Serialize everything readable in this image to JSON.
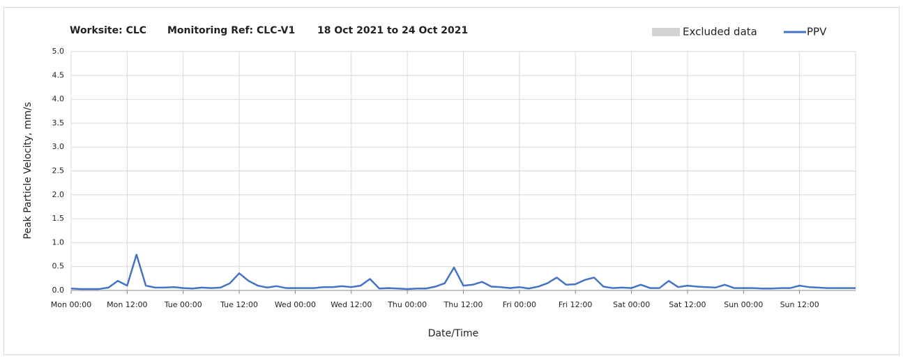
{
  "chart_data": {
    "type": "line",
    "title": "Worksite: CLC",
    "monitoring_ref": "Monitoring Ref: CLC-V1",
    "date_range": "18 Oct 2021 to 24 Oct 2021",
    "x_label": "Date/Time",
    "y_label": "Peak Particle Velocity, mm/s",
    "excluded_data": {
      "name": "Excluded data",
      "color": "#d3d3d3"
    },
    "x": [
      0,
      2,
      4,
      6,
      8,
      10,
      12,
      14,
      16,
      18,
      20,
      22,
      24,
      26,
      28,
      30,
      32,
      34,
      36,
      38,
      40,
      42,
      44,
      46,
      48,
      50,
      52,
      54,
      56,
      58,
      60,
      62,
      64,
      66,
      68,
      70,
      72,
      74,
      76,
      78,
      80,
      82,
      84,
      86,
      88,
      90,
      92,
      94,
      96,
      98,
      100,
      102,
      104,
      106,
      108,
      110,
      112,
      114,
      116,
      118,
      120,
      122,
      124,
      126,
      128,
      130,
      132,
      134,
      136,
      138,
      140,
      142,
      144,
      146,
      148,
      150,
      152,
      154,
      156,
      158,
      160,
      162,
      164,
      166,
      168
    ],
    "series": [
      {
        "name": "PPV",
        "color": "#4472c4",
        "values": [
          0.04,
          0.03,
          0.03,
          0.03,
          0.06,
          0.2,
          0.1,
          0.75,
          0.1,
          0.06,
          0.06,
          0.07,
          0.05,
          0.04,
          0.06,
          0.05,
          0.06,
          0.15,
          0.36,
          0.2,
          0.1,
          0.06,
          0.09,
          0.05,
          0.05,
          0.05,
          0.05,
          0.07,
          0.07,
          0.09,
          0.07,
          0.1,
          0.24,
          0.04,
          0.05,
          0.04,
          0.03,
          0.04,
          0.04,
          0.08,
          0.15,
          0.48,
          0.1,
          0.12,
          0.18,
          0.08,
          0.07,
          0.05,
          0.07,
          0.04,
          0.08,
          0.15,
          0.27,
          0.12,
          0.13,
          0.22,
          0.27,
          0.08,
          0.05,
          0.06,
          0.05,
          0.12,
          0.05,
          0.05,
          0.2,
          0.07,
          0.1,
          0.08,
          0.07,
          0.06,
          0.12,
          0.05,
          0.05,
          0.05,
          0.04,
          0.04,
          0.05,
          0.05,
          0.1,
          0.07,
          0.06,
          0.05,
          0.05,
          0.05,
          0.05
        ]
      }
    ],
    "xlim": [
      0,
      168
    ],
    "xticks": [
      {
        "value": 0,
        "label": "Mon 00:00"
      },
      {
        "value": 12,
        "label": "Mon 12:00"
      },
      {
        "value": 24,
        "label": "Tue 00:00"
      },
      {
        "value": 36,
        "label": "Tue 12:00"
      },
      {
        "value": 48,
        "label": "Wed 00:00"
      },
      {
        "value": 60,
        "label": "Wed 12:00"
      },
      {
        "value": 72,
        "label": "Thu 00:00"
      },
      {
        "value": 84,
        "label": "Thu 12:00"
      },
      {
        "value": 96,
        "label": "Fri 00:00"
      },
      {
        "value": 108,
        "label": "Fri 12:00"
      },
      {
        "value": 120,
        "label": "Sat 00:00"
      },
      {
        "value": 132,
        "label": "Sat 12:00"
      },
      {
        "value": 144,
        "label": "Sun 00:00"
      },
      {
        "value": 156,
        "label": "Sun 12:00"
      }
    ],
    "ylim": [
      0,
      5
    ],
    "yticks": [
      {
        "value": 0,
        "label": "0.0"
      },
      0.5,
      {
        "value": 1,
        "label": "1.0"
      },
      1.5,
      {
        "value": 2,
        "label": "2.0"
      },
      2.5,
      {
        "value": 3,
        "label": "3.0"
      },
      3.5,
      {
        "value": 4,
        "label": "4.0"
      },
      4.5,
      {
        "value": 5,
        "label": "5.0"
      }
    ],
    "grid": true
  }
}
